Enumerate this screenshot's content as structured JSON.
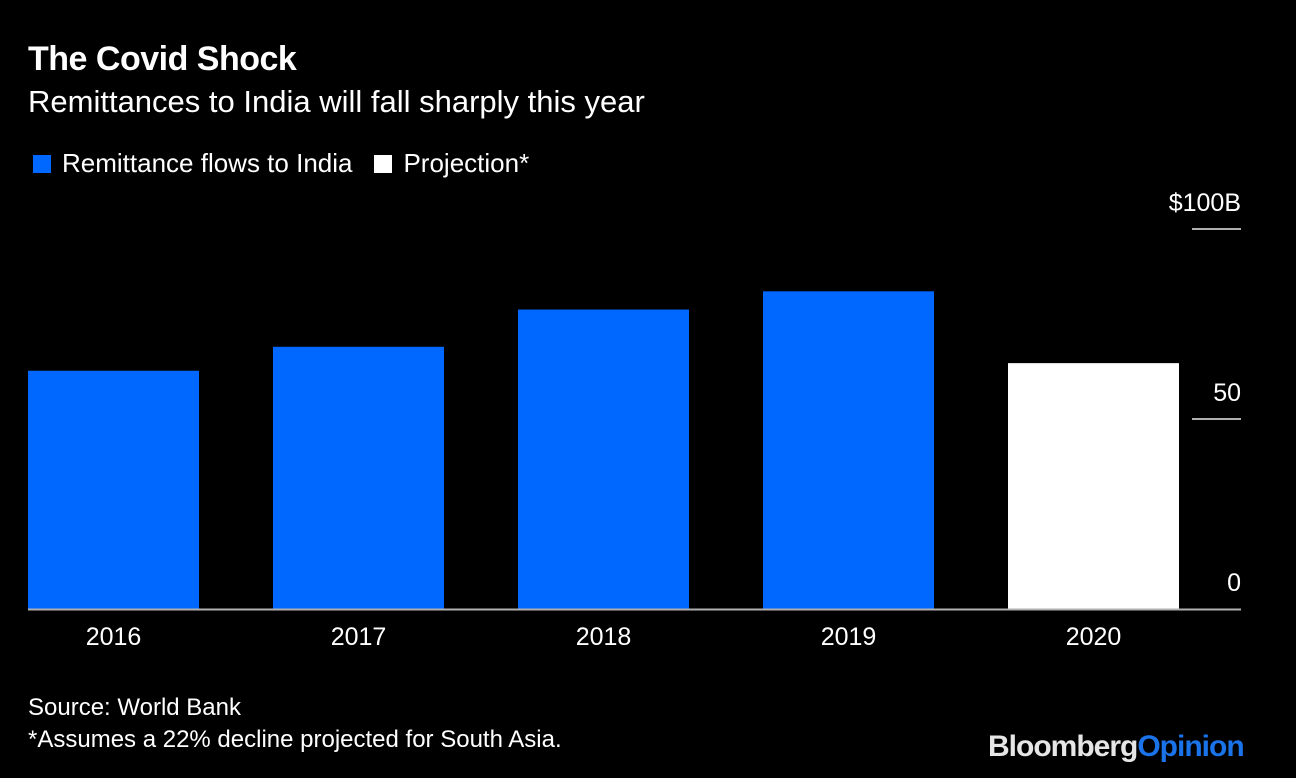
{
  "header": {
    "title": "The Covid Shock",
    "subtitle": "Remittances to India will fall sharply this year"
  },
  "legend": [
    {
      "label": "Remittance flows to India",
      "color": "#0068ff"
    },
    {
      "label": "Projection*",
      "color": "#ffffff"
    }
  ],
  "footer": {
    "source": "Source: World Bank",
    "note": "*Assumes a 22% decline projected for South Asia."
  },
  "logo": {
    "part1": "Bloomberg",
    "part2": "Opinion"
  },
  "chart_data": {
    "type": "bar",
    "title": "The Covid Shock",
    "subtitle": "Remittances to India will fall sharply this year",
    "categories": [
      "2016",
      "2017",
      "2018",
      "2019",
      "2020"
    ],
    "values": [
      62.7,
      69.0,
      78.8,
      83.6,
      64.7
    ],
    "series_by_bar": [
      "Remittance flows to India",
      "Remittance flows to India",
      "Remittance flows to India",
      "Remittance flows to India",
      "Projection*"
    ],
    "colors": {
      "actual": "#0068ff",
      "projection": "#ffffff",
      "axis": "#b0b0b0"
    },
    "ylim": [
      0,
      100
    ],
    "yticks": [
      0,
      50,
      100
    ],
    "ytick_labels": [
      "0",
      "50",
      "$100B"
    ],
    "y_axis_side": "right",
    "xlabel": "",
    "ylabel": "",
    "grid": false,
    "legend_position": "top-left"
  }
}
